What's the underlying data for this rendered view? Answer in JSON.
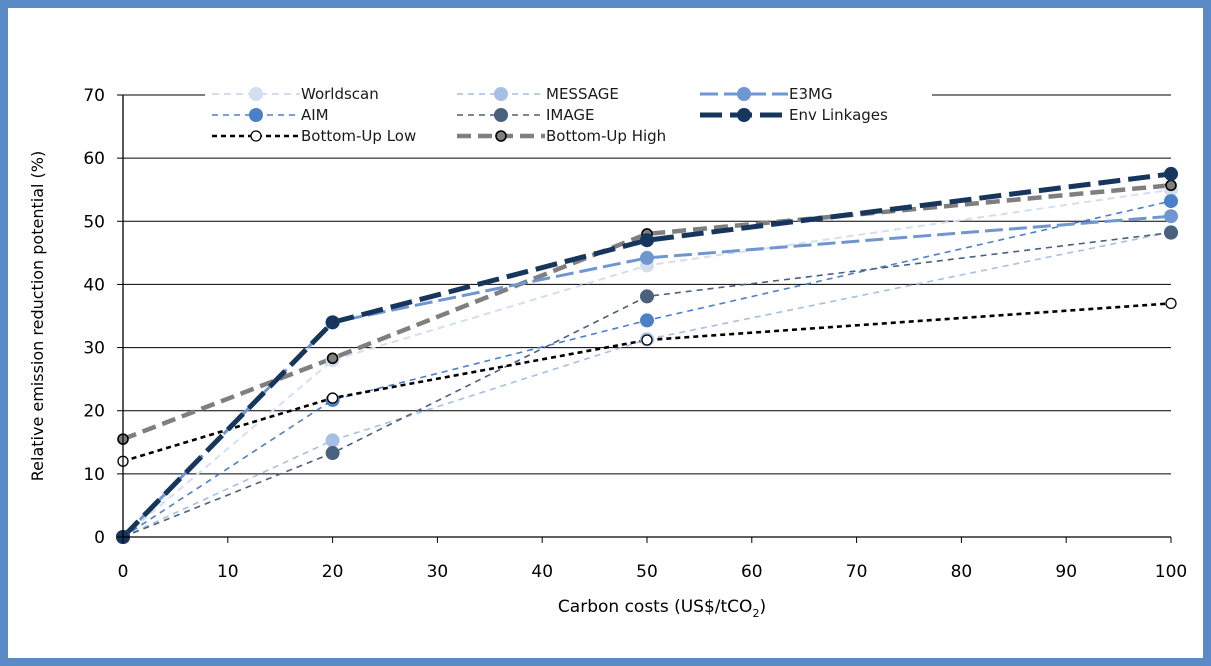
{
  "chart_data": {
    "type": "line",
    "xlabel_main": "Carbon costs (US$/tCO",
    "xlabel_sub": "2",
    "xlabel_end": ")",
    "ylabel": "Relative emission reduction potential (%)",
    "xlim": [
      0,
      100
    ],
    "ylim": [
      0,
      70
    ],
    "x_ticks": [
      "0",
      "10",
      "20",
      "30",
      "40",
      "50",
      "60",
      "70",
      "80",
      "90",
      "100"
    ],
    "y_ticks": [
      "0",
      "10",
      "20",
      "30",
      "40",
      "50",
      "60",
      "70"
    ],
    "grid": "horizontal",
    "legend_position": "top",
    "series": [
      {
        "name": "Worldscan",
        "color": "#d3dff0",
        "dash": "7,5",
        "width": 2,
        "marker": "filled",
        "marker_size": 7,
        "x": [
          0,
          20,
          50,
          100
        ],
        "y": [
          0,
          28,
          43,
          55
        ]
      },
      {
        "name": "MESSAGE",
        "color": "#a6bfe3",
        "dash": "6,5",
        "width": 1.6,
        "marker": "filled",
        "marker_size": 7,
        "x": [
          0,
          20,
          50,
          100
        ],
        "y": [
          0,
          15.3,
          31.3,
          48.3
        ]
      },
      {
        "name": "E3MG",
        "color": "#6f96d0",
        "dash": "18,6",
        "width": 3,
        "marker": "filled",
        "marker_size": 7,
        "x": [
          0,
          20,
          50,
          100
        ],
        "y": [
          0,
          34,
          44.2,
          50.8
        ]
      },
      {
        "name": "AIM",
        "color": "#4a80c8",
        "dash": "6,5",
        "width": 1.6,
        "marker": "filled",
        "marker_size": 7,
        "x": [
          0,
          20,
          50,
          100
        ],
        "y": [
          0,
          21.7,
          34.3,
          53.2
        ]
      },
      {
        "name": "IMAGE",
        "color": "#4a607f",
        "dash": "6,5",
        "width": 1.6,
        "marker": "filled",
        "marker_size": 7,
        "x": [
          0,
          20,
          50,
          100
        ],
        "y": [
          0,
          13.3,
          38.1,
          48.2
        ]
      },
      {
        "name": "Env Linkages",
        "color": "#17365d",
        "dash": "22,8",
        "width": 5,
        "marker": "filled",
        "marker_size": 7,
        "x": [
          0,
          20,
          50,
          100
        ],
        "y": [
          0,
          34,
          47,
          57.5
        ]
      },
      {
        "name": "Bottom-Up Low",
        "color": "#000000",
        "dash": "5,4",
        "width": 2.6,
        "marker": "open",
        "marker_size": 5,
        "x": [
          0,
          20,
          50,
          100
        ],
        "y": [
          12,
          22,
          31.2,
          37
        ]
      },
      {
        "name": "Bottom-Up High",
        "color": "#7f7f7f",
        "dash": "14,7",
        "width": 4.5,
        "marker": "gray",
        "marker_size": 5,
        "x": [
          0,
          20,
          50,
          100
        ],
        "y": [
          15.5,
          28.3,
          48,
          55.7
        ]
      }
    ]
  }
}
